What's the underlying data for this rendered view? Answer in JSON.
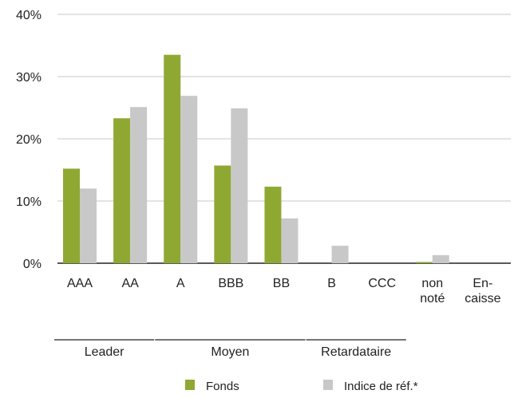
{
  "chart_data": {
    "type": "bar",
    "categories": [
      [
        "AAA"
      ],
      [
        "AA"
      ],
      [
        "A"
      ],
      [
        "BBB"
      ],
      [
        "BB"
      ],
      [
        "B"
      ],
      [
        "CCC"
      ],
      [
        "non",
        "noté"
      ],
      [
        "En-",
        "caisse"
      ]
    ],
    "series": [
      {
        "name": "Fonds",
        "color": "#8fa832",
        "values": [
          15.2,
          23.3,
          33.5,
          15.7,
          12.3,
          0,
          0,
          0.2,
          0
        ]
      },
      {
        "name": "Indice de réf.*",
        "color": "#c8c8c8",
        "values": [
          12.0,
          25.1,
          26.9,
          24.9,
          7.2,
          2.8,
          0,
          1.3,
          0
        ]
      }
    ],
    "y_ticks": [
      "0%",
      "10%",
      "20%",
      "30%",
      "40%"
    ],
    "ylim": [
      0,
      40
    ],
    "grid": true,
    "groups": [
      {
        "label": "Leader",
        "from": 0,
        "to": 1
      },
      {
        "label": "Moyen",
        "from": 2,
        "to": 4
      },
      {
        "label": "Retardataire",
        "from": 5,
        "to": 6
      }
    ],
    "legend": {
      "position": "bottom"
    }
  }
}
